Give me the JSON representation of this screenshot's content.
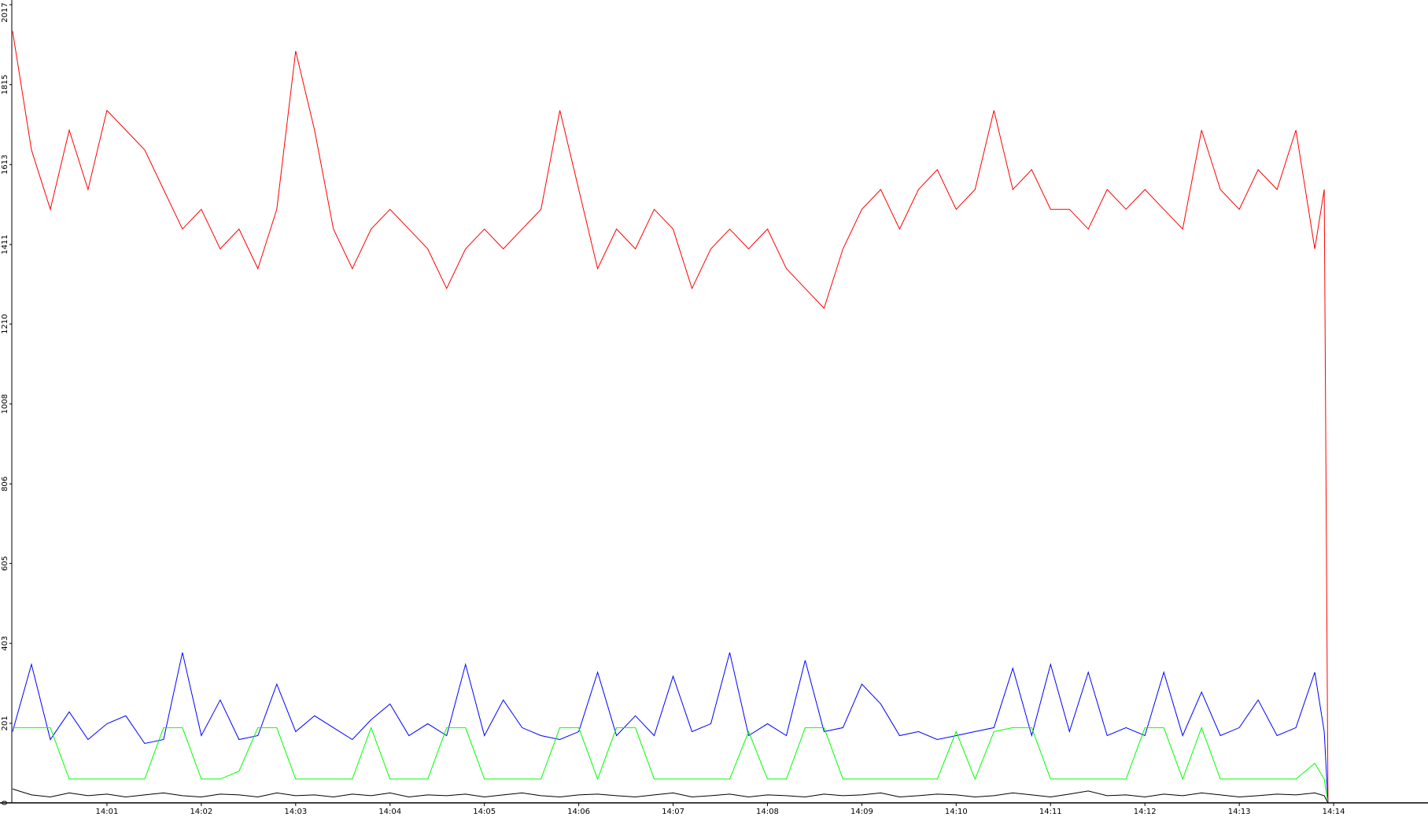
{
  "chart_data": {
    "type": "line",
    "x": [
      0,
      0.2,
      0.4,
      0.6,
      0.8,
      1.0,
      1.2,
      1.4,
      1.6,
      1.8,
      2.0,
      2.2,
      2.4,
      2.6,
      2.8,
      3.0,
      3.2,
      3.4,
      3.6,
      3.8,
      4.0,
      4.2,
      4.4,
      4.6,
      4.8,
      5.0,
      5.2,
      5.4,
      5.6,
      5.8,
      6.0,
      6.2,
      6.4,
      6.6,
      6.8,
      7.0,
      7.2,
      7.4,
      7.6,
      7.8,
      8.0,
      8.2,
      8.4,
      8.6,
      8.8,
      9.0,
      9.2,
      9.4,
      9.6,
      9.8,
      10.0,
      10.2,
      10.4,
      10.6,
      10.8,
      11.0,
      11.2,
      11.4,
      11.6,
      11.8,
      12.0,
      12.2,
      12.4,
      12.6,
      12.8,
      13.0,
      13.2,
      13.4,
      13.6,
      13.8,
      13.9,
      13.94
    ],
    "series": [
      {
        "color": "#ff0000",
        "values": [
          1950,
          1650,
          1500,
          1700,
          1550,
          1750,
          1700,
          1650,
          1550,
          1450,
          1500,
          1400,
          1450,
          1350,
          1500,
          1900,
          1700,
          1450,
          1350,
          1450,
          1500,
          1450,
          1400,
          1300,
          1400,
          1450,
          1400,
          1450,
          1500,
          1750,
          1550,
          1350,
          1450,
          1400,
          1500,
          1450,
          1300,
          1400,
          1450,
          1400,
          1450,
          1350,
          1300,
          1250,
          1400,
          1500,
          1550,
          1450,
          1550,
          1600,
          1500,
          1550,
          1750,
          1550,
          1600,
          1500,
          1500,
          1450,
          1550,
          1500,
          1550,
          1500,
          1450,
          1700,
          1550,
          1500,
          1600,
          1550,
          1700,
          1400,
          1550,
          0
        ]
      },
      {
        "color": "#0000ff",
        "values": [
          180,
          350,
          160,
          230,
          160,
          200,
          220,
          150,
          160,
          380,
          170,
          260,
          160,
          170,
          300,
          180,
          220,
          190,
          160,
          210,
          250,
          170,
          200,
          170,
          350,
          170,
          260,
          190,
          170,
          160,
          180,
          330,
          170,
          220,
          170,
          320,
          180,
          200,
          380,
          170,
          200,
          170,
          360,
          180,
          190,
          300,
          250,
          170,
          180,
          160,
          170,
          180,
          190,
          340,
          170,
          350,
          180,
          330,
          170,
          190,
          170,
          330,
          170,
          280,
          170,
          190,
          260,
          170,
          190,
          330,
          180,
          0
        ]
      },
      {
        "color": "#00ff00",
        "values": [
          190,
          190,
          190,
          60,
          60,
          60,
          60,
          60,
          190,
          190,
          60,
          60,
          80,
          190,
          190,
          60,
          60,
          60,
          60,
          190,
          60,
          60,
          60,
          190,
          190,
          60,
          60,
          60,
          60,
          190,
          190,
          60,
          190,
          190,
          60,
          60,
          60,
          60,
          60,
          180,
          60,
          60,
          190,
          190,
          60,
          60,
          60,
          60,
          60,
          60,
          180,
          60,
          180,
          190,
          190,
          60,
          60,
          60,
          60,
          60,
          190,
          190,
          60,
          190,
          60,
          60,
          60,
          60,
          60,
          100,
          60,
          0
        ]
      },
      {
        "color": "#000000",
        "values": [
          35,
          20,
          15,
          25,
          18,
          22,
          15,
          20,
          25,
          18,
          15,
          22,
          20,
          15,
          25,
          18,
          20,
          15,
          22,
          18,
          25,
          15,
          20,
          18,
          22,
          15,
          20,
          25,
          18,
          15,
          20,
          22,
          18,
          15,
          20,
          25,
          15,
          18,
          22,
          15,
          20,
          18,
          15,
          22,
          18,
          20,
          25,
          15,
          18,
          22,
          20,
          15,
          18,
          25,
          20,
          15,
          22,
          30,
          18,
          20,
          15,
          22,
          18,
          25,
          20,
          15,
          18,
          22,
          20,
          25,
          18,
          0
        ]
      }
    ],
    "xlim": [
      0,
      15
    ],
    "xticks": [
      {
        "value": 1,
        "label": "14:01"
      },
      {
        "value": 2,
        "label": "14:02"
      },
      {
        "value": 3,
        "label": "14:03"
      },
      {
        "value": 4,
        "label": "14:04"
      },
      {
        "value": 5,
        "label": "14:05"
      },
      {
        "value": 6,
        "label": "14:06"
      },
      {
        "value": 7,
        "label": "14:07"
      },
      {
        "value": 8,
        "label": "14:08"
      },
      {
        "value": 9,
        "label": "14:09"
      },
      {
        "value": 10,
        "label": "14:10"
      },
      {
        "value": 11,
        "label": "14:11"
      },
      {
        "value": 12,
        "label": "14:12"
      },
      {
        "value": 13,
        "label": "14:13"
      },
      {
        "value": 14,
        "label": "14:14"
      }
    ],
    "ylim": [
      0,
      2017
    ],
    "yticks": [
      0,
      201,
      403,
      605,
      806,
      1008,
      1210,
      1411,
      1613,
      1815,
      2017
    ]
  }
}
